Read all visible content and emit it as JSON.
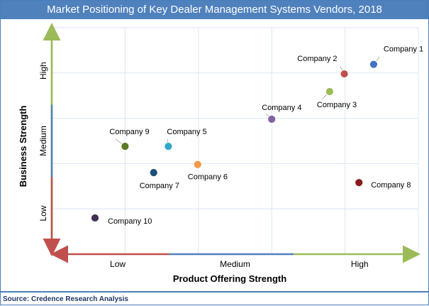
{
  "chart_data": {
    "type": "scatter",
    "title": "Market Positioning of Key Dealer Management Systems  Vendors, 2018",
    "xlabel": "Product Offering Strength",
    "ylabel": "Business Strength",
    "x_categories": [
      "Low",
      "Medium",
      "High"
    ],
    "y_categories": [
      "Low",
      "Medium",
      "High"
    ],
    "xlim": [
      0,
      5
    ],
    "ylim": [
      0,
      5
    ],
    "grid": true,
    "points": [
      {
        "label": "Company 1",
        "x": 4.39,
        "y": 4.19,
        "color": "#4472c4"
      },
      {
        "label": "Company 2",
        "x": 3.99,
        "y": 3.98,
        "color": "#c0504d"
      },
      {
        "label": "Company 3",
        "x": 3.79,
        "y": 3.59,
        "color": "#9bbb59"
      },
      {
        "label": "Company 4",
        "x": 3.0,
        "y": 2.98,
        "color": "#8064a2"
      },
      {
        "label": "Company 5",
        "x": 1.59,
        "y": 2.38,
        "color": "#31a8c4"
      },
      {
        "label": "Company 6",
        "x": 1.99,
        "y": 1.98,
        "color": "#f79646"
      },
      {
        "label": "Company 7",
        "x": 1.39,
        "y": 1.8,
        "color": "#1f4e79"
      },
      {
        "label": "Company 8",
        "x": 4.19,
        "y": 1.58,
        "color": "#8b1a1a"
      },
      {
        "label": "Company 9",
        "x": 1.0,
        "y": 2.38,
        "color": "#5a7a23"
      },
      {
        "label": "Company 10",
        "x": 0.59,
        "y": 0.8,
        "color": "#403152"
      }
    ]
  },
  "source": "Source: Credence Research Analysis"
}
